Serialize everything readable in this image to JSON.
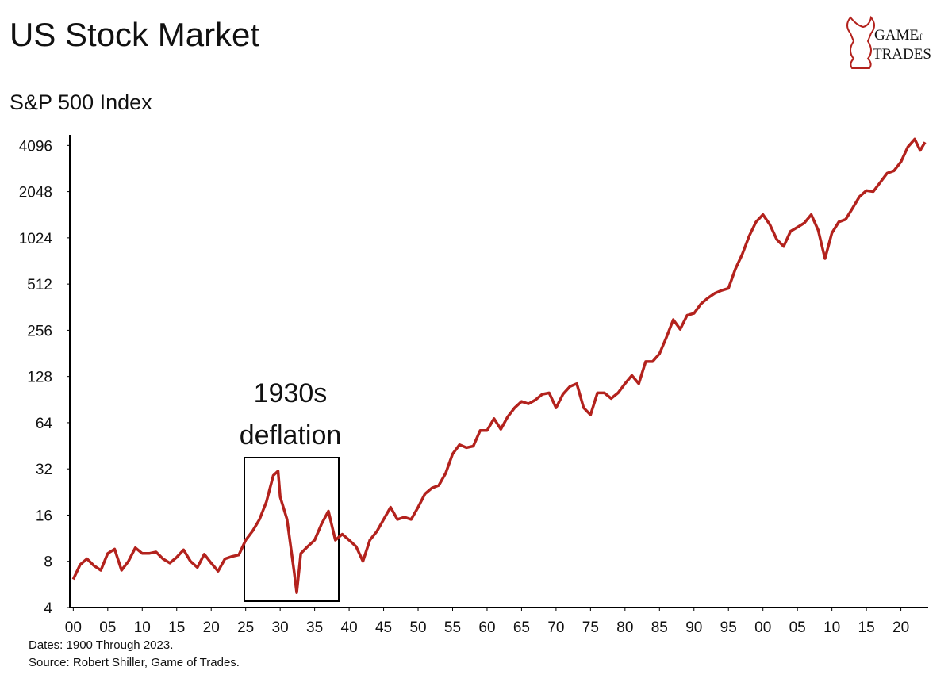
{
  "chart_data": {
    "type": "line",
    "title": "US Stock Market",
    "subtitle": "S&P 500 Index",
    "annotation": [
      "1930s",
      "deflation"
    ],
    "notes": [
      "Dates: 1900 Through 2023.",
      "Source: Robert Shiller, Game of Trades."
    ],
    "logo": [
      "GAME",
      "of",
      "TRADES"
    ],
    "log_y": true,
    "color": "#b3221d",
    "xlim": [
      1899.5,
      2023.5
    ],
    "ylim": [
      4,
      4800
    ],
    "yticks": [
      4,
      8,
      16,
      32,
      64,
      128,
      256,
      512,
      1024,
      2048,
      4096
    ],
    "xticks": [
      {
        "value": 1900,
        "label": "00"
      },
      {
        "value": 1905,
        "label": "05"
      },
      {
        "value": 1910,
        "label": "10"
      },
      {
        "value": 1915,
        "label": "15"
      },
      {
        "value": 1920,
        "label": "20"
      },
      {
        "value": 1925,
        "label": "25"
      },
      {
        "value": 1930,
        "label": "30"
      },
      {
        "value": 1935,
        "label": "35"
      },
      {
        "value": 1940,
        "label": "40"
      },
      {
        "value": 1945,
        "label": "45"
      },
      {
        "value": 1950,
        "label": "50"
      },
      {
        "value": 1955,
        "label": "55"
      },
      {
        "value": 1960,
        "label": "60"
      },
      {
        "value": 1965,
        "label": "65"
      },
      {
        "value": 1970,
        "label": "70"
      },
      {
        "value": 1975,
        "label": "75"
      },
      {
        "value": 1980,
        "label": "80"
      },
      {
        "value": 1985,
        "label": "85"
      },
      {
        "value": 1990,
        "label": "90"
      },
      {
        "value": 1995,
        "label": "95"
      },
      {
        "value": 2000,
        "label": "00"
      },
      {
        "value": 2005,
        "label": "05"
      },
      {
        "value": 2010,
        "label": "10"
      },
      {
        "value": 2015,
        "label": "15"
      },
      {
        "value": 2020,
        "label": "20"
      }
    ],
    "x": [
      1900,
      1901,
      1902,
      1903,
      1904,
      1905,
      1906,
      1907,
      1908,
      1909,
      1910,
      1911,
      1912,
      1913,
      1914,
      1915,
      1916,
      1917,
      1918,
      1919,
      1920,
      1921,
      1922,
      1923,
      1924,
      1925,
      1926,
      1927,
      1928,
      1929,
      1929.7,
      1930,
      1931,
      1932,
      1932.4,
      1933,
      1934,
      1935,
      1936,
      1937,
      1938,
      1939,
      1940,
      1941,
      1942,
      1943,
      1944,
      1945,
      1946,
      1947,
      1948,
      1949,
      1950,
      1951,
      1952,
      1953,
      1954,
      1955,
      1956,
      1957,
      1958,
      1959,
      1960,
      1961,
      1962,
      1963,
      1964,
      1965,
      1966,
      1967,
      1968,
      1969,
      1970,
      1971,
      1972,
      1973,
      1974,
      1975,
      1976,
      1977,
      1978,
      1979,
      1980,
      1981,
      1982,
      1983,
      1984,
      1985,
      1986,
      1987,
      1988,
      1989,
      1990,
      1991,
      1992,
      1993,
      1994,
      1995,
      1996,
      1997,
      1998,
      1999,
      2000,
      2001,
      2002,
      2003,
      2004,
      2005,
      2006,
      2007,
      2008,
      2009,
      2010,
      2011,
      2012,
      2013,
      2014,
      2015,
      2016,
      2017,
      2018,
      2019,
      2020,
      2021,
      2022,
      2022.8,
      2023.5
    ],
    "values": [
      6.1,
      7.6,
      8.3,
      7.5,
      7.0,
      9.0,
      9.6,
      7.0,
      8.0,
      9.8,
      9.0,
      9.0,
      9.2,
      8.3,
      7.8,
      8.5,
      9.5,
      8.0,
      7.3,
      8.9,
      7.8,
      6.9,
      8.3,
      8.6,
      8.8,
      11,
      12.6,
      15,
      19.5,
      29,
      31,
      21,
      15,
      7,
      5,
      9,
      10,
      11,
      14,
      17,
      11,
      12,
      11,
      10,
      8,
      11,
      12.5,
      15,
      18,
      15,
      15.5,
      15,
      18,
      22,
      24,
      25,
      30,
      40,
      46,
      44,
      45,
      57,
      57,
      68,
      58,
      70,
      80,
      88,
      85,
      90,
      98,
      100,
      80,
      98,
      110,
      115,
      80,
      72,
      100,
      100,
      92,
      100,
      115,
      130,
      115,
      160,
      160,
      180,
      230,
      300,
      260,
      320,
      330,
      380,
      415,
      445,
      465,
      480,
      640,
      800,
      1050,
      1300,
      1450,
      1250,
      1000,
      900,
      1130,
      1200,
      1280,
      1450,
      1150,
      750,
      1100,
      1300,
      1350,
      1600,
      1900,
      2080,
      2050,
      2350,
      2700,
      2800,
      3200,
      4000,
      4500,
      3800,
      4300
    ]
  }
}
